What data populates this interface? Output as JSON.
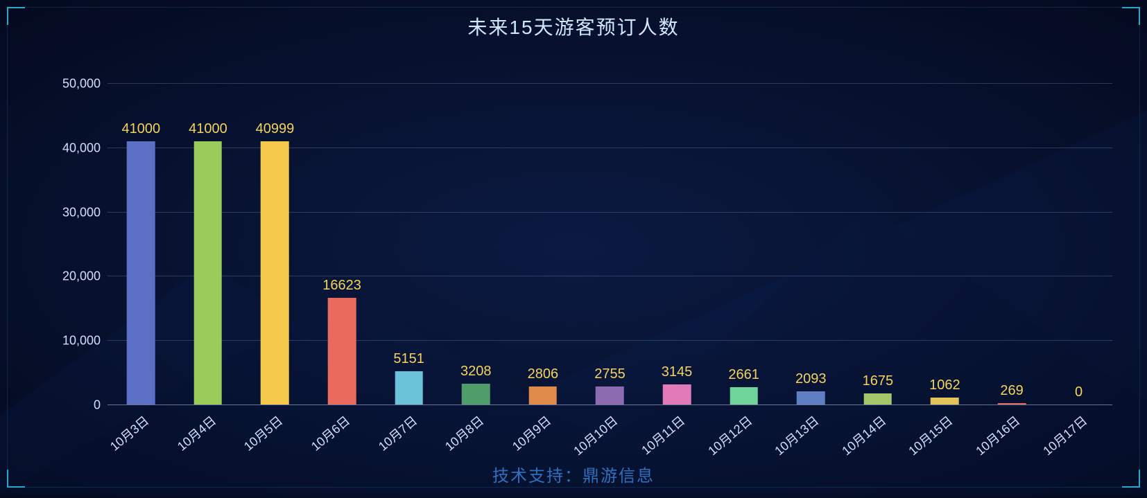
{
  "title": "未来15天游客预订人数",
  "footer": "技术支持：鼎游信息",
  "chart": {
    "type": "bar",
    "background_gradient": [
      "#0b1a42",
      "#060f2a",
      "#040a1f"
    ],
    "corner_color": "#2aa8c9",
    "title_color": "#cfe7ff",
    "title_fontsize": 28,
    "footer_color": "#2f6fbf",
    "footer_fontsize": 24,
    "axis_label_color": "#cfe0ff",
    "axis_label_fontsize": 18,
    "value_label_color": "#f4d35e",
    "value_label_fontsize": 20,
    "grid_color": "rgba(120,150,200,0.32)",
    "axis_line_color": "rgba(180,200,235,0.55)",
    "y": {
      "min": 0,
      "max": 50000,
      "step": 10000,
      "tick_labels": [
        "0",
        "10,000",
        "20,000",
        "30,000",
        "40,000",
        "50,000"
      ]
    },
    "bar_width_ratio": 0.42,
    "categories": [
      "10月3日",
      "10月4日",
      "10月5日",
      "10月6日",
      "10月7日",
      "10月8日",
      "10月9日",
      "10月10日",
      "10月11日",
      "10月12日",
      "10月13日",
      "10月14日",
      "10月15日",
      "10月16日",
      "10月17日"
    ],
    "values": [
      41000,
      41000,
      40999,
      16623,
      5151,
      3208,
      2806,
      2755,
      3145,
      2661,
      2093,
      1675,
      1062,
      269,
      0
    ],
    "bar_colors": [
      "#5b6fc4",
      "#9bcb5a",
      "#f3c84b",
      "#ea6a5e",
      "#6bc3d9",
      "#4f9d6b",
      "#e08a4c",
      "#8c6bb1",
      "#e07ab8",
      "#6fd59a",
      "#5f7ec4",
      "#a5c66a",
      "#e2c35a",
      "#dd6a5c",
      "#6bbdd0"
    ],
    "x_label_rotation_deg": -40
  }
}
